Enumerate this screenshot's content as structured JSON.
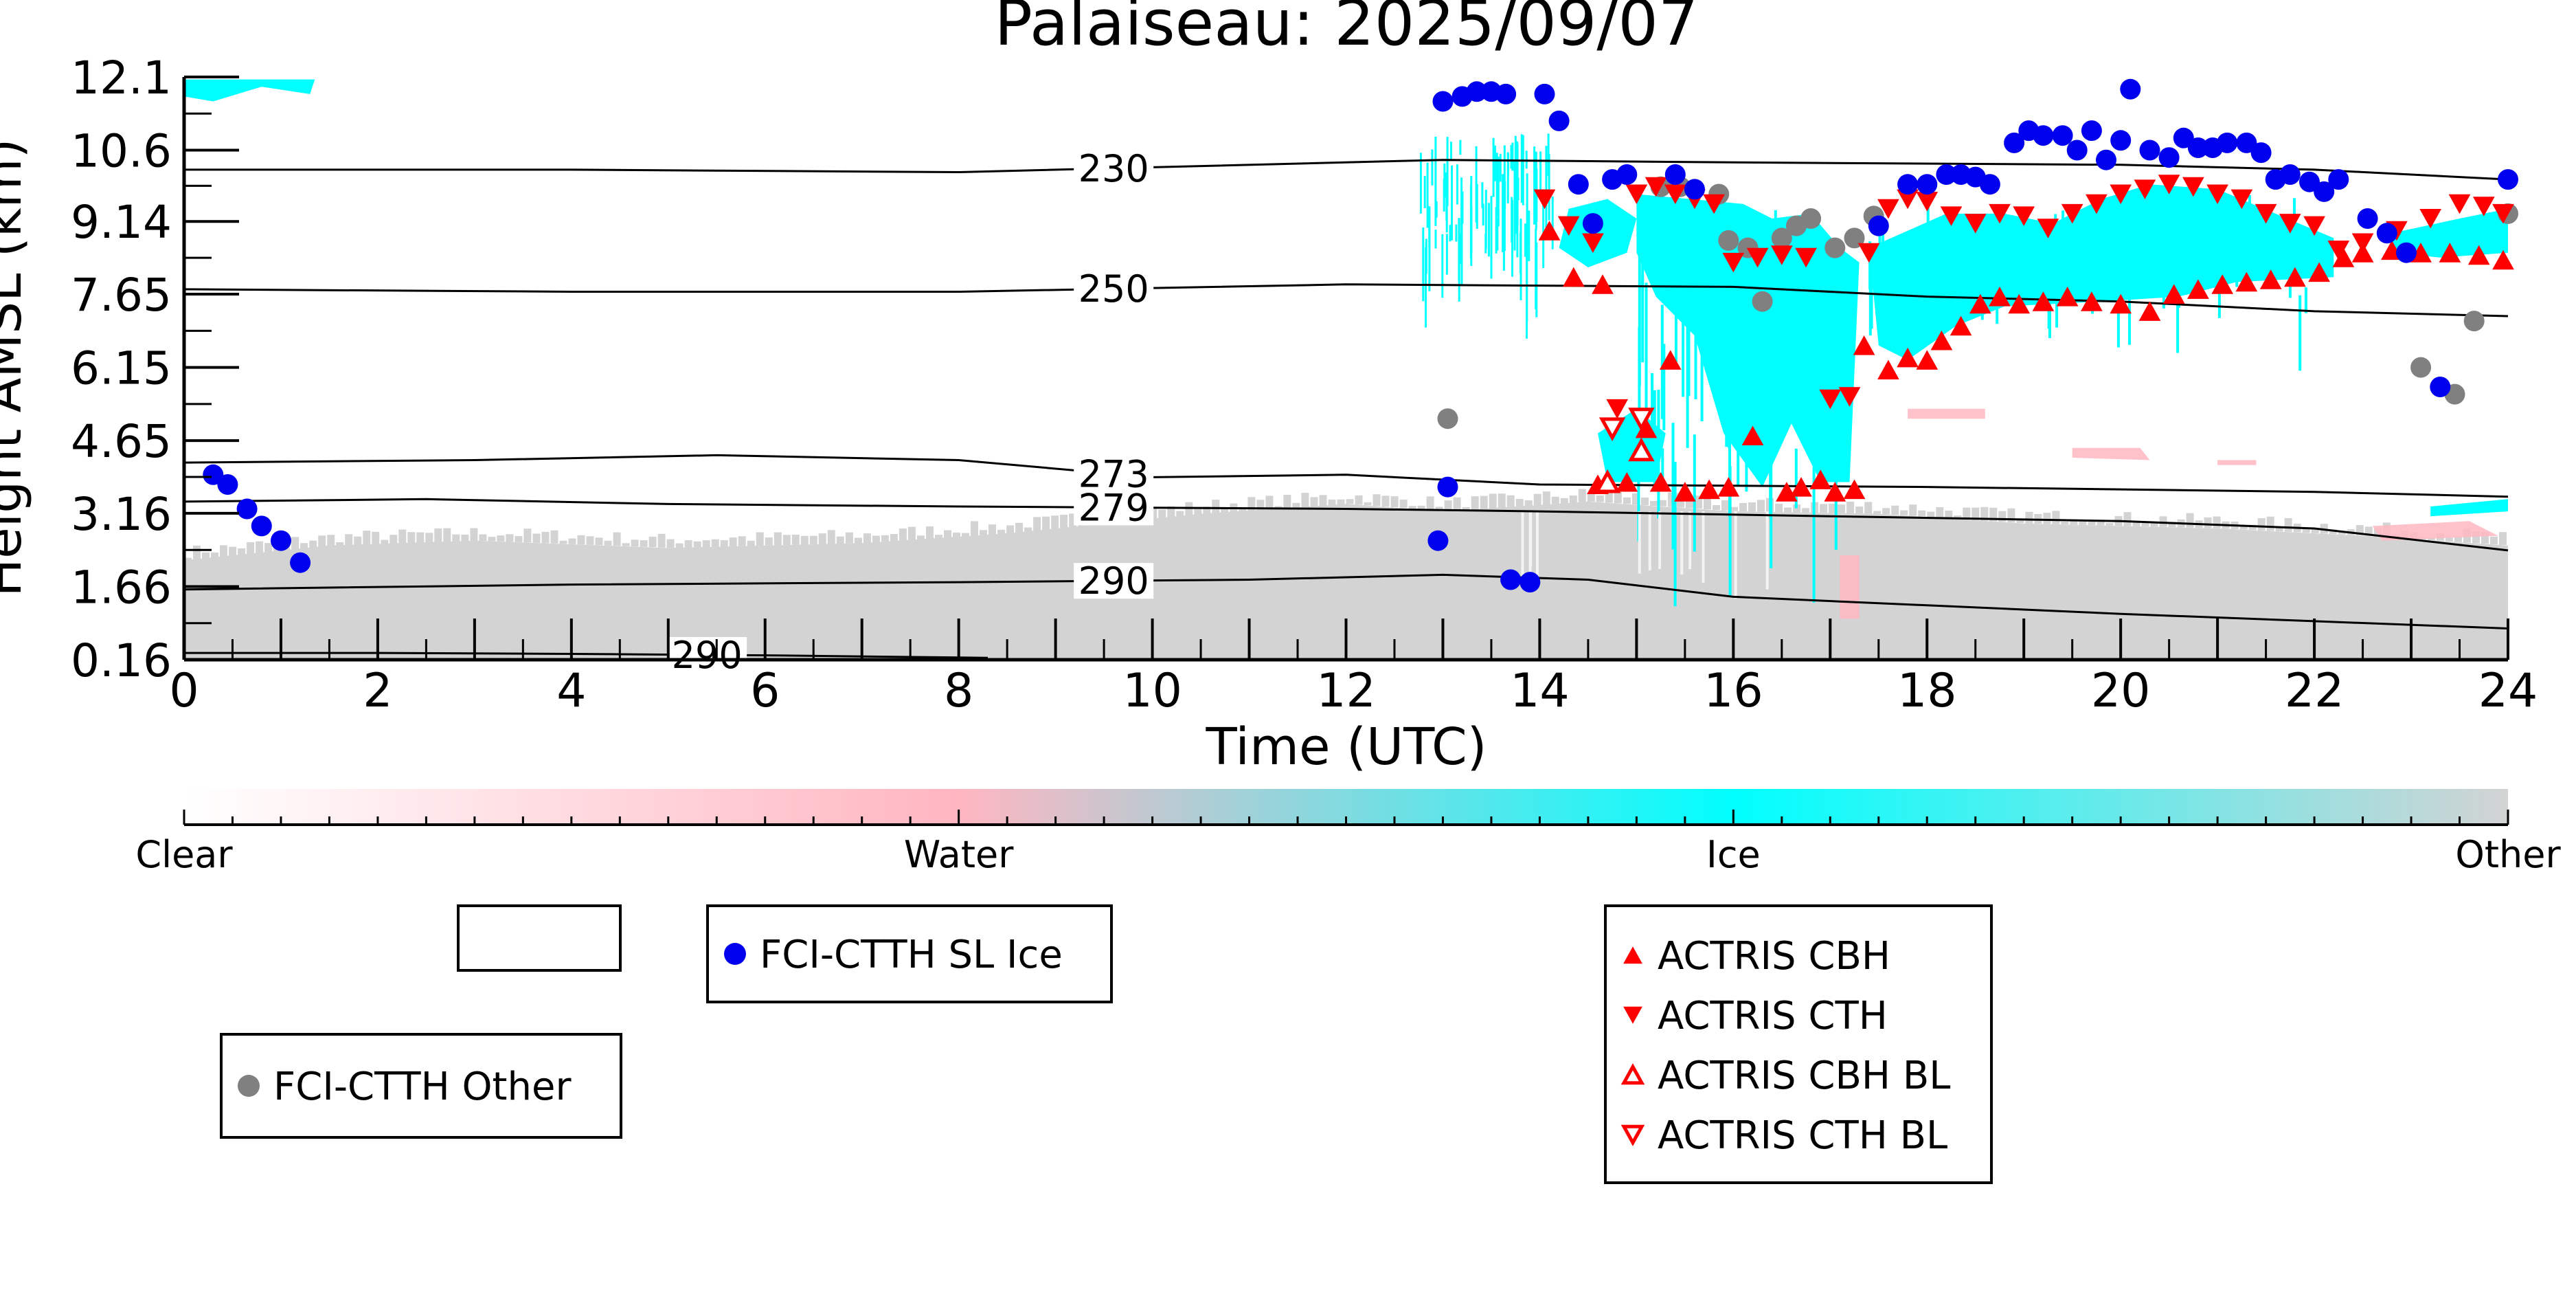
{
  "chart_data": {
    "type": "scatter",
    "title": "Palaiseau: 2025/09/07",
    "xlabel": "Time (UTC)",
    "ylabel": "Height AMSL (km)",
    "xlim": [
      0,
      24
    ],
    "ylim": [
      0.16,
      12.1
    ],
    "x_ticks": [
      0,
      2,
      4,
      6,
      8,
      10,
      12,
      14,
      16,
      18,
      20,
      22,
      24
    ],
    "x_tick_labels": [
      "0",
      "2",
      "4",
      "6",
      "8",
      "10",
      "12",
      "14",
      "16",
      "18",
      "20",
      "22",
      "24"
    ],
    "y_ticks": [
      0.16,
      1.66,
      3.16,
      4.65,
      6.15,
      7.65,
      9.14,
      10.6,
      12.1
    ],
    "y_tick_labels": [
      "0.16",
      "1.66",
      "3.16",
      "4.65",
      "6.15",
      "7.65",
      "9.14",
      "10.6",
      "12.1"
    ],
    "grid": false,
    "colors": {
      "sl_ice": "#0000ee",
      "other": "#808080",
      "actris": "#ff0000",
      "ice_fill": "#00ffff",
      "water_fill": "#ffb6c1",
      "other_fill": "#d3d3d3",
      "contour": "#000000"
    },
    "colorbar": {
      "labels": [
        "Clear",
        "Water",
        "Ice",
        "Other"
      ],
      "stops": [
        "#ffffff",
        "#ffb6c1",
        "#00ffff",
        "#d3d3d3"
      ]
    },
    "contours": [
      {
        "label": "230",
        "label_x": 9.6,
        "points": [
          [
            0,
            10.2
          ],
          [
            4,
            10.2
          ],
          [
            8,
            10.15
          ],
          [
            10,
            10.25
          ],
          [
            13,
            10.4
          ],
          [
            16,
            10.35
          ],
          [
            20,
            10.3
          ],
          [
            22,
            10.2
          ],
          [
            24,
            10.0
          ]
        ]
      },
      {
        "label": "250",
        "label_x": 9.6,
        "points": [
          [
            0,
            7.75
          ],
          [
            4,
            7.7
          ],
          [
            8,
            7.7
          ],
          [
            12,
            7.85
          ],
          [
            16,
            7.8
          ],
          [
            18,
            7.6
          ],
          [
            20,
            7.5
          ],
          [
            22,
            7.3
          ],
          [
            24,
            7.2
          ]
        ]
      },
      {
        "label": "273",
        "label_x": 9.6,
        "points": [
          [
            0,
            4.2
          ],
          [
            3,
            4.25
          ],
          [
            5.5,
            4.35
          ],
          [
            8,
            4.25
          ],
          [
            10,
            3.9
          ],
          [
            12,
            3.95
          ],
          [
            14,
            3.75
          ],
          [
            18,
            3.7
          ],
          [
            22,
            3.6
          ],
          [
            24,
            3.5
          ]
        ]
      },
      {
        "label": "279",
        "label_x": 9.6,
        "points": [
          [
            0,
            3.4
          ],
          [
            2.5,
            3.45
          ],
          [
            5,
            3.35
          ],
          [
            8,
            3.3
          ],
          [
            12,
            3.25
          ],
          [
            14,
            3.2
          ],
          [
            17,
            3.1
          ],
          [
            20,
            3.0
          ],
          [
            22,
            2.85
          ],
          [
            24,
            2.4
          ]
        ]
      },
      {
        "label": "290",
        "label_x": 9.6,
        "points": [
          [
            0,
            1.6
          ],
          [
            4,
            1.7
          ],
          [
            8,
            1.75
          ],
          [
            11,
            1.8
          ],
          [
            13,
            1.9
          ],
          [
            14.5,
            1.8
          ],
          [
            16,
            1.45
          ],
          [
            20,
            1.1
          ],
          [
            22,
            0.95
          ],
          [
            24,
            0.8
          ]
        ]
      },
      {
        "label": "290",
        "label_x": 5.4,
        "points": [
          [
            0,
            0.3
          ],
          [
            2,
            0.3
          ],
          [
            4,
            0.28
          ],
          [
            6,
            0.25
          ],
          [
            8.3,
            0.2
          ]
        ]
      }
    ],
    "series": [
      {
        "name": "FCI-CTTH SL Ice",
        "marker": "circle",
        "points": [
          [
            0.3,
            3.95
          ],
          [
            0.45,
            3.75
          ],
          [
            0.65,
            3.25
          ],
          [
            0.8,
            2.9
          ],
          [
            1.0,
            2.6
          ],
          [
            1.2,
            2.15
          ],
          [
            12.95,
            2.6
          ],
          [
            13.05,
            3.7
          ],
          [
            13.0,
            11.6
          ],
          [
            13.2,
            11.7
          ],
          [
            13.35,
            11.8
          ],
          [
            13.5,
            11.8
          ],
          [
            13.65,
            11.75
          ],
          [
            14.05,
            11.75
          ],
          [
            14.2,
            11.2
          ],
          [
            14.4,
            9.9
          ],
          [
            14.55,
            9.1
          ],
          [
            14.75,
            10.0
          ],
          [
            14.9,
            10.1
          ],
          [
            15.4,
            10.1
          ],
          [
            15.6,
            9.8
          ],
          [
            13.7,
            1.8
          ],
          [
            13.9,
            1.75
          ],
          [
            17.5,
            9.05
          ],
          [
            17.8,
            9.9
          ],
          [
            18.0,
            9.9
          ],
          [
            18.2,
            10.1
          ],
          [
            18.35,
            10.1
          ],
          [
            18.5,
            10.05
          ],
          [
            18.65,
            9.9
          ],
          [
            18.9,
            10.75
          ],
          [
            19.05,
            11.0
          ],
          [
            19.2,
            10.9
          ],
          [
            19.4,
            10.9
          ],
          [
            19.55,
            10.6
          ],
          [
            19.7,
            11.0
          ],
          [
            19.85,
            10.4
          ],
          [
            20.0,
            10.8
          ],
          [
            20.1,
            11.85
          ],
          [
            20.3,
            10.6
          ],
          [
            20.5,
            10.45
          ],
          [
            20.65,
            10.85
          ],
          [
            20.8,
            10.65
          ],
          [
            20.95,
            10.65
          ],
          [
            21.1,
            10.75
          ],
          [
            21.3,
            10.75
          ],
          [
            21.45,
            10.55
          ],
          [
            21.6,
            10.0
          ],
          [
            21.75,
            10.1
          ],
          [
            21.95,
            9.95
          ],
          [
            22.1,
            9.75
          ],
          [
            22.25,
            10.0
          ],
          [
            22.55,
            9.2
          ],
          [
            22.75,
            8.9
          ],
          [
            22.95,
            8.5
          ],
          [
            23.3,
            5.75
          ],
          [
            24.0,
            10.0
          ]
        ]
      },
      {
        "name": "FCI-CTTH Other",
        "marker": "circle",
        "points": [
          [
            13.05,
            5.1
          ],
          [
            15.25,
            9.85
          ],
          [
            15.45,
            9.85
          ],
          [
            15.85,
            9.7
          ],
          [
            15.95,
            8.75
          ],
          [
            16.15,
            8.6
          ],
          [
            16.3,
            7.5
          ],
          [
            16.5,
            8.8
          ],
          [
            16.65,
            9.05
          ],
          [
            16.8,
            9.2
          ],
          [
            17.05,
            8.6
          ],
          [
            17.25,
            8.8
          ],
          [
            17.45,
            9.25
          ],
          [
            23.1,
            6.15
          ],
          [
            23.45,
            5.6
          ],
          [
            23.65,
            7.1
          ],
          [
            24.0,
            9.3
          ]
        ]
      },
      {
        "name": "ACTRIS CBH",
        "marker": "triangle-up",
        "points": [
          [
            14.1,
            8.95
          ],
          [
            14.35,
            8.0
          ],
          [
            14.65,
            7.85
          ],
          [
            14.6,
            3.75
          ],
          [
            14.9,
            3.8
          ],
          [
            15.1,
            4.9
          ],
          [
            15.25,
            3.8
          ],
          [
            15.5,
            3.6
          ],
          [
            15.75,
            3.65
          ],
          [
            15.95,
            3.7
          ],
          [
            16.2,
            4.75
          ],
          [
            16.55,
            3.6
          ],
          [
            16.7,
            3.7
          ],
          [
            16.9,
            3.85
          ],
          [
            17.05,
            3.6
          ],
          [
            17.25,
            3.65
          ],
          [
            15.35,
            6.3
          ],
          [
            17.35,
            6.6
          ],
          [
            17.6,
            6.1
          ],
          [
            17.8,
            6.35
          ],
          [
            18.0,
            6.3
          ],
          [
            18.15,
            6.7
          ],
          [
            18.35,
            7.0
          ],
          [
            18.55,
            7.45
          ],
          [
            18.75,
            7.6
          ],
          [
            18.95,
            7.45
          ],
          [
            19.2,
            7.5
          ],
          [
            19.45,
            7.6
          ],
          [
            19.7,
            7.5
          ],
          [
            20.0,
            7.45
          ],
          [
            20.3,
            7.3
          ],
          [
            20.55,
            7.65
          ],
          [
            20.8,
            7.75
          ],
          [
            21.05,
            7.85
          ],
          [
            21.3,
            7.9
          ],
          [
            21.55,
            7.95
          ],
          [
            21.8,
            8.0
          ],
          [
            22.05,
            8.1
          ],
          [
            22.3,
            8.4
          ],
          [
            22.5,
            8.5
          ],
          [
            22.8,
            8.55
          ],
          [
            23.1,
            8.5
          ],
          [
            23.4,
            8.5
          ],
          [
            23.7,
            8.45
          ],
          [
            23.95,
            8.35
          ]
        ]
      },
      {
        "name": "ACTRIS CTH",
        "marker": "triangle-down",
        "points": [
          [
            14.05,
            9.6
          ],
          [
            14.3,
            9.05
          ],
          [
            14.55,
            8.7
          ],
          [
            14.8,
            5.3
          ],
          [
            15.0,
            9.7
          ],
          [
            15.2,
            9.85
          ],
          [
            15.4,
            9.7
          ],
          [
            15.6,
            9.6
          ],
          [
            15.8,
            9.5
          ],
          [
            16.0,
            8.3
          ],
          [
            16.25,
            8.4
          ],
          [
            16.5,
            8.45
          ],
          [
            16.75,
            8.4
          ],
          [
            17.0,
            5.5
          ],
          [
            17.2,
            5.55
          ],
          [
            17.4,
            8.5
          ],
          [
            17.6,
            9.4
          ],
          [
            17.8,
            9.6
          ],
          [
            18.0,
            9.55
          ],
          [
            18.25,
            9.25
          ],
          [
            18.5,
            9.1
          ],
          [
            18.75,
            9.3
          ],
          [
            19.0,
            9.25
          ],
          [
            19.25,
            9.0
          ],
          [
            19.5,
            9.3
          ],
          [
            19.75,
            9.5
          ],
          [
            20.0,
            9.7
          ],
          [
            20.25,
            9.8
          ],
          [
            20.5,
            9.9
          ],
          [
            20.75,
            9.85
          ],
          [
            21.0,
            9.7
          ],
          [
            21.25,
            9.6
          ],
          [
            21.5,
            9.3
          ],
          [
            21.75,
            9.1
          ],
          [
            22.0,
            9.05
          ],
          [
            22.25,
            8.55
          ],
          [
            22.5,
            8.7
          ],
          [
            22.85,
            8.95
          ],
          [
            23.2,
            9.2
          ],
          [
            23.5,
            9.5
          ],
          [
            23.75,
            9.45
          ],
          [
            23.95,
            9.3
          ]
        ]
      },
      {
        "name": "ACTRIS CBH BL",
        "marker": "triangle-up-open",
        "points": [
          [
            14.7,
            3.8
          ],
          [
            15.05,
            4.45
          ]
        ]
      },
      {
        "name": "ACTRIS CTH BL",
        "marker": "triangle-down-open",
        "points": [
          [
            14.75,
            4.9
          ],
          [
            15.05,
            5.1
          ]
        ]
      }
    ],
    "legends": [
      {
        "id": "empty",
        "entries": []
      },
      {
        "id": "sl-ice",
        "entries": [
          {
            "series": "FCI-CTTH SL Ice",
            "label": "FCI-CTTH SL Ice"
          }
        ]
      },
      {
        "id": "other",
        "entries": [
          {
            "series": "FCI-CTTH Other",
            "label": "FCI-CTTH Other"
          }
        ]
      },
      {
        "id": "actris",
        "entries": [
          {
            "series": "ACTRIS CBH",
            "label": "ACTRIS CBH"
          },
          {
            "series": "ACTRIS CTH",
            "label": "ACTRIS CTH"
          },
          {
            "series": "ACTRIS CBH BL",
            "label": "ACTRIS CBH BL"
          },
          {
            "series": "ACTRIS CTH BL",
            "label": "ACTRIS CTH BL"
          }
        ]
      }
    ]
  }
}
